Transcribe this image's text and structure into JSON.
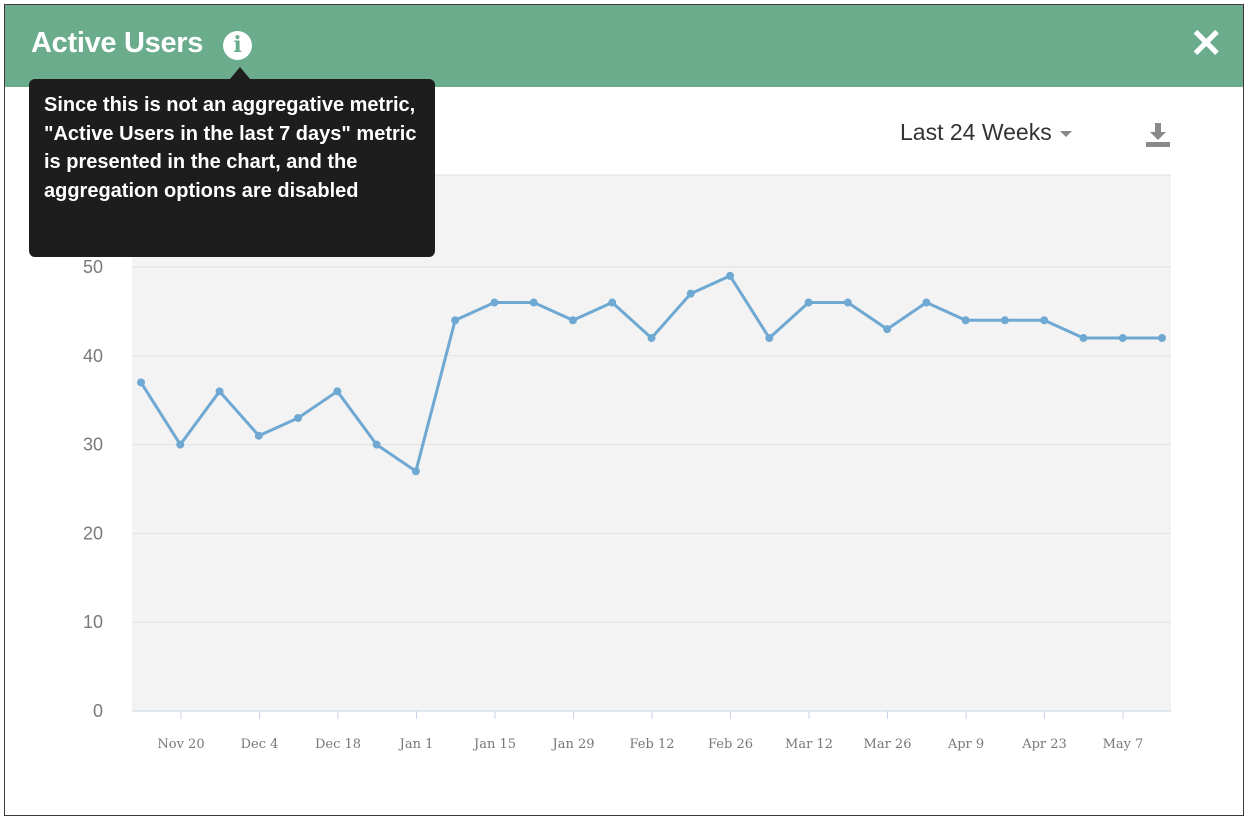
{
  "header": {
    "title": "Active Users",
    "info_icon": "info-icon",
    "close_icon": "close-icon",
    "background": "#6aac8c"
  },
  "tooltip": {
    "text": "Since this is not an aggregative metric, \"Active Users in the last 7 days\" metric is presented in the chart, and the aggregation options are disabled"
  },
  "controls": {
    "range_label": "Last 24 Weeks",
    "download_icon": "download-icon"
  },
  "chart_data": {
    "type": "line",
    "ylim": [
      0,
      50
    ],
    "yticks": [
      0,
      10,
      20,
      30,
      40,
      50
    ],
    "xlabels": [
      "Nov 20",
      "Dec 4",
      "Dec 18",
      "Jan 1",
      "Jan 15",
      "Jan 29",
      "Feb 12",
      "Feb 26",
      "Mar 12",
      "Mar 26",
      "Apr 9",
      "Apr 23",
      "May 7"
    ],
    "series": [
      {
        "color": "#6fa8d2",
        "values": [
          37,
          30,
          36,
          31,
          33,
          36,
          30,
          27,
          44,
          46,
          46,
          44,
          46,
          42,
          47,
          49,
          42,
          46,
          46,
          43,
          46,
          44,
          44,
          44,
          42,
          42,
          42
        ]
      }
    ],
    "grid": true,
    "background": "#f3f3f3"
  }
}
